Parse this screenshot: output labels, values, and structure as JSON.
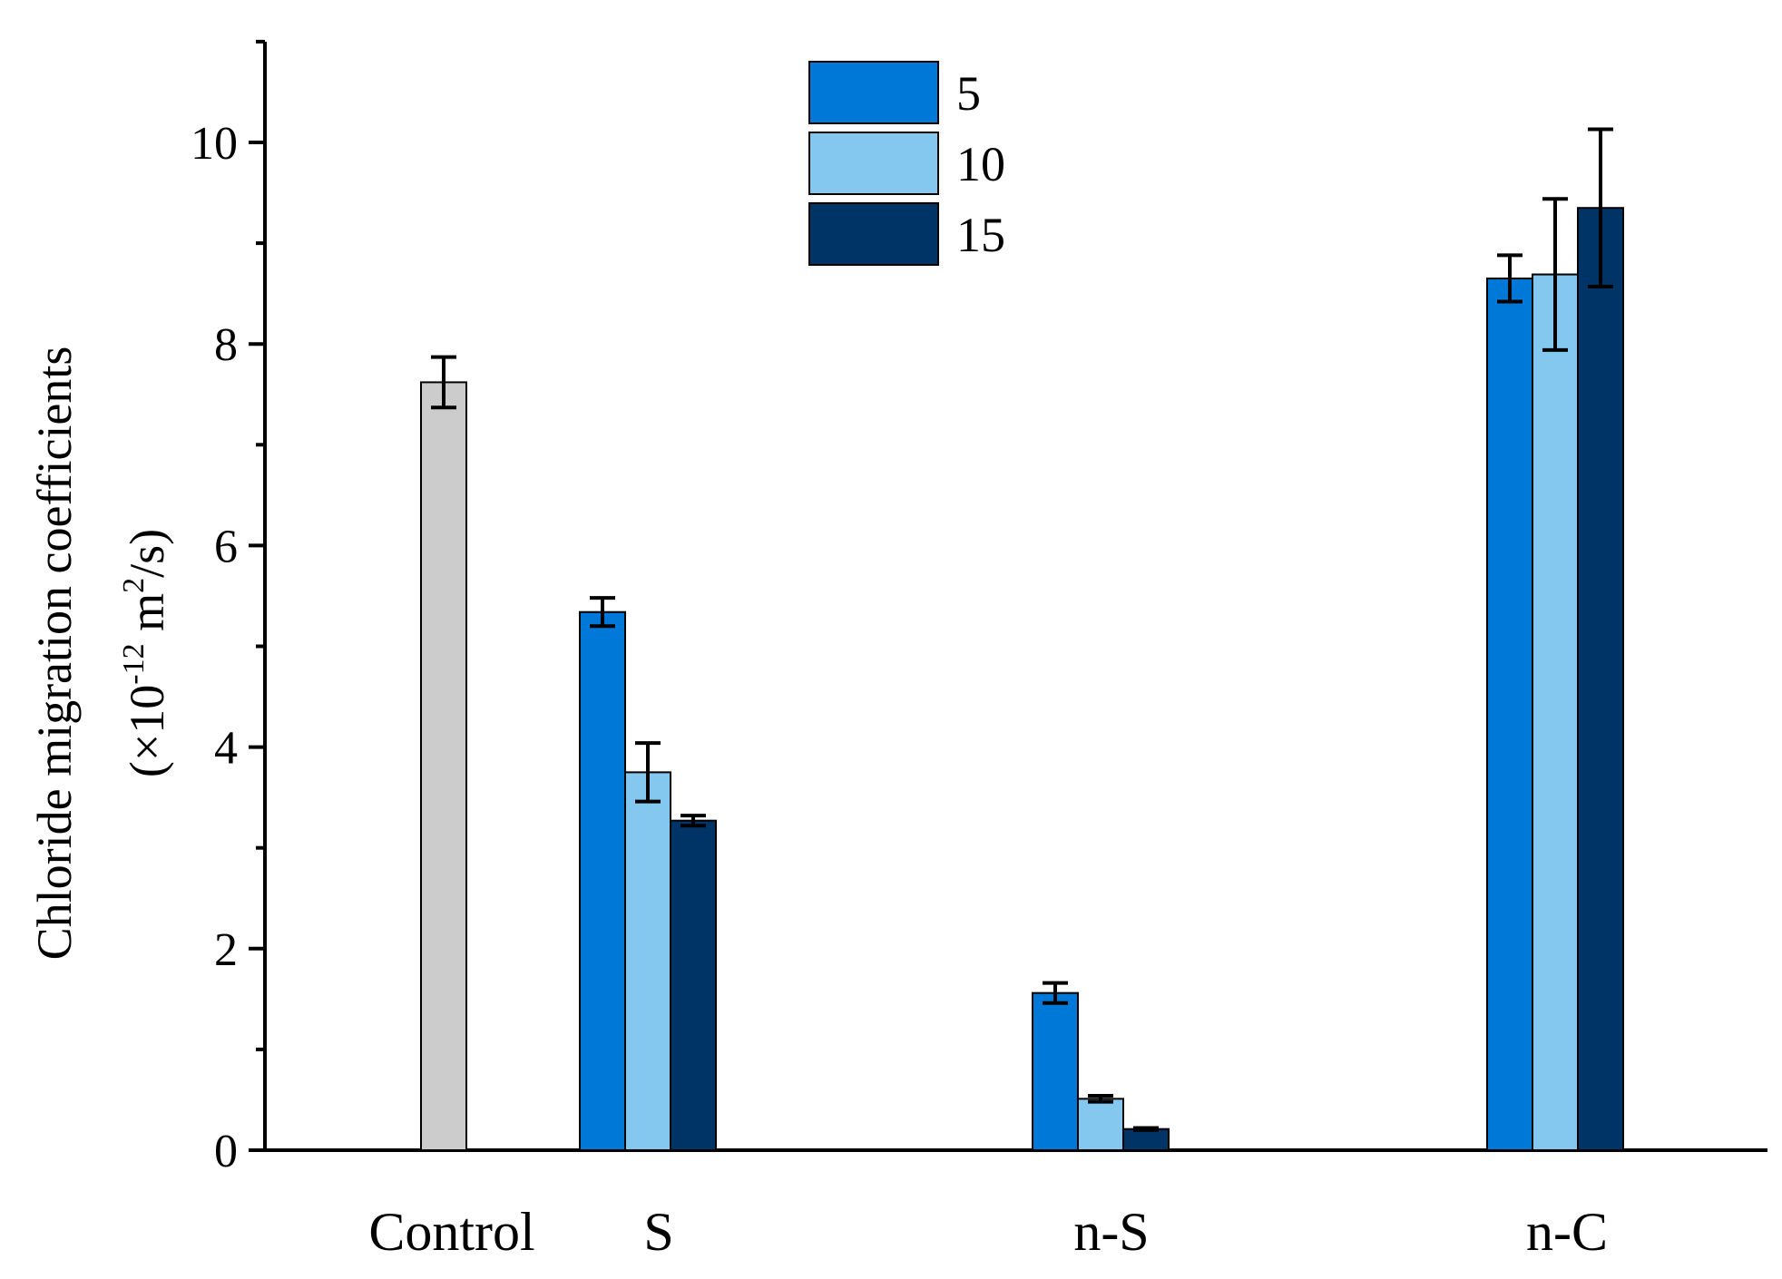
{
  "chart_data": {
    "type": "bar",
    "title": "",
    "xlabel": "",
    "ylabel_line1": "Chloride migration coefficients",
    "ylabel_prefix": "(×10",
    "ylabel_exp1": "-12",
    "ylabel_mid": " m",
    "ylabel_exp2": "2",
    "ylabel_suffix": "/s)",
    "ylim": [
      0,
      11
    ],
    "yticks": [
      0,
      2,
      4,
      6,
      8,
      10
    ],
    "categories": [
      "Control",
      "S",
      "n-S",
      "n-C"
    ],
    "control": {
      "value": 7.62,
      "err": 0.25,
      "color": "#cccccc"
    },
    "series": [
      {
        "name": "5",
        "color": "#0078d7",
        "values": [
          null,
          5.34,
          1.56,
          8.65
        ],
        "errors": [
          null,
          0.14,
          0.1,
          0.23
        ]
      },
      {
        "name": "10",
        "color": "#84c8f0",
        "values": [
          null,
          3.75,
          0.51,
          8.69
        ],
        "errors": [
          null,
          0.29,
          0.03,
          0.75
        ]
      },
      {
        "name": "15",
        "color": "#003366",
        "values": [
          null,
          3.27,
          0.21,
          9.35
        ],
        "errors": [
          null,
          0.05,
          0.01,
          0.78
        ]
      }
    ],
    "legend": {
      "position": "top-center",
      "entries": [
        "5",
        "10",
        "15"
      ]
    },
    "grid": false
  }
}
